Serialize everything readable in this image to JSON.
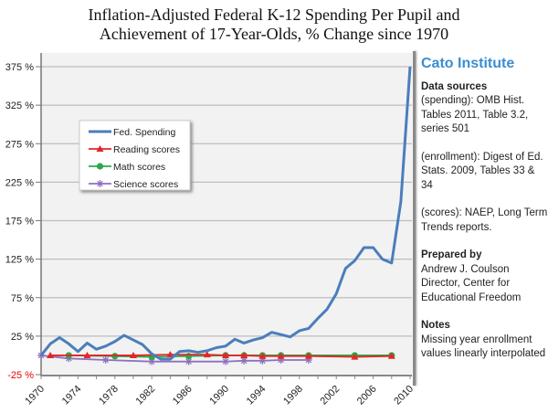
{
  "title_lines": [
    "Inflation-Adjusted Federal K-12 Spending Per Pupil and",
    "Achievement of 17-Year-Olds, % Change since 1970"
  ],
  "sidebar": {
    "brand": "Cato Institute",
    "sources_heading": "Data sources",
    "sources": [
      "(spending): OMB Hist. Tables 2011, Table 3.2, series 501",
      "(enrollment): Digest of Ed. Stats. 2009, Tables 33 & 34",
      "(scores): NAEP, Long Term Trends reports."
    ],
    "prepared_heading": "Prepared by",
    "prepared": "Andrew J. Coulson Director, Center for Educational Freedom",
    "notes_heading": "Notes",
    "notes": "Missing year enrollment values linearly interpolated"
  },
  "chart_data": {
    "type": "line",
    "title": "Inflation-Adjusted Federal K-12 Spending Per Pupil and Achievement of 17-Year-Olds, % Change since 1970",
    "xlabel": "",
    "ylabel": "",
    "ylim": [
      -25,
      375
    ],
    "yticks": [
      "-25 %",
      "25 %",
      "75 %",
      "125 %",
      "175 %",
      "225 %",
      "275 %",
      "325 %",
      "375 %"
    ],
    "ytick_values": [
      -25,
      25,
      75,
      125,
      175,
      225,
      275,
      325,
      375
    ],
    "xlim": [
      1970,
      2010
    ],
    "xticks": [
      "1970",
      "1974",
      "1978",
      "1982",
      "1986",
      "1990",
      "1994",
      "1998",
      "2002",
      "2006",
      "2010"
    ],
    "grid": true,
    "legend": "upper-left",
    "series": [
      {
        "name": "Fed. Spending",
        "color": "#4a7ebb",
        "marker": "none",
        "x": [
          1970,
          1971,
          1972,
          1973,
          1974,
          1975,
          1976,
          1977,
          1978,
          1979,
          1980,
          1981,
          1982,
          1983,
          1984,
          1985,
          1986,
          1987,
          1988,
          1989,
          1990,
          1991,
          1992,
          1993,
          1994,
          1995,
          1996,
          1997,
          1998,
          1999,
          2000,
          2001,
          2002,
          2003,
          2004,
          2005,
          2006,
          2007,
          2008,
          2009,
          2010
        ],
        "y": [
          0,
          15,
          23,
          15,
          5,
          16,
          8,
          12,
          18,
          26,
          20,
          14,
          2,
          -5,
          -5,
          5,
          6,
          4,
          6,
          10,
          12,
          21,
          16,
          20,
          23,
          30,
          27,
          24,
          32,
          35,
          48,
          60,
          80,
          113,
          123,
          140,
          140,
          125,
          120,
          200,
          375
        ]
      },
      {
        "name": "Reading scores",
        "color": "#e32626",
        "marker": "triangle",
        "x": [
          1971,
          1975,
          1980,
          1984,
          1988,
          1990,
          1992,
          1994,
          1996,
          1999,
          2004,
          2008
        ],
        "y": [
          0,
          0,
          0,
          1,
          1,
          0,
          0,
          -1,
          -1,
          -1,
          -2,
          -1
        ]
      },
      {
        "name": "Math scores",
        "color": "#2ea84a",
        "marker": "circle",
        "x": [
          1973,
          1978,
          1982,
          1986,
          1990,
          1992,
          1994,
          1996,
          1999,
          2004,
          2008
        ],
        "y": [
          0,
          -1,
          -2,
          -1,
          0,
          0,
          0,
          0,
          0,
          0,
          0
        ]
      },
      {
        "name": "Science scores",
        "color": "#8f6fc1",
        "marker": "star",
        "x": [
          1970,
          1973,
          1977,
          1982,
          1986,
          1990,
          1992,
          1994,
          1996,
          1999
        ],
        "y": [
          0,
          -4,
          -6,
          -8,
          -8,
          -8,
          -7,
          -7,
          -6,
          -6
        ]
      }
    ]
  }
}
